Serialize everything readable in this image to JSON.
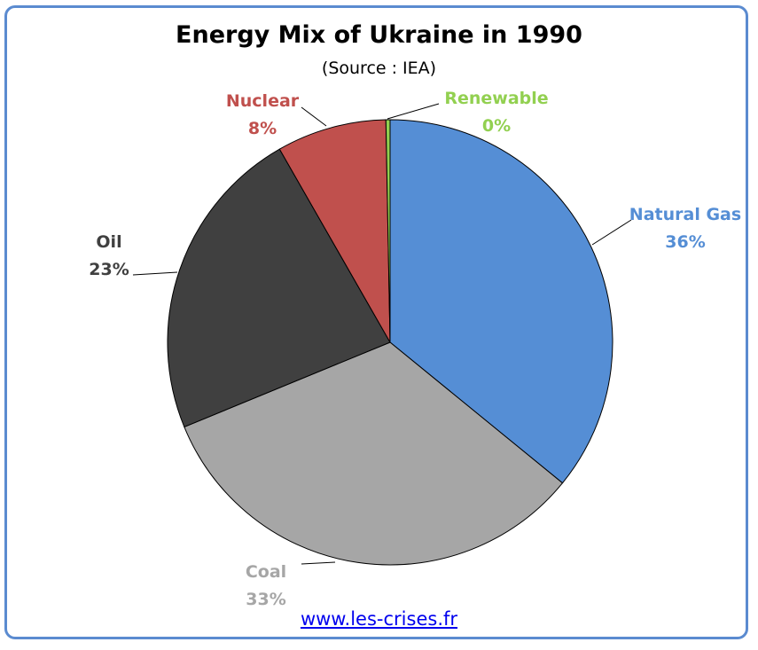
{
  "title": "Energy Mix of Ukraine in 1990",
  "subtitle": "(Source : IEA)",
  "footer_link": "www.les-crises.fr",
  "chart_data": {
    "type": "pie",
    "title": "Energy Mix of Ukraine in 1990",
    "subtitle": "(Source : IEA)",
    "slices": [
      {
        "name": "Natural Gas",
        "value": 36,
        "label": "36%",
        "color": "#558ed5",
        "label_color": "#558ed5"
      },
      {
        "name": "Coal",
        "value": 33,
        "label": "33%",
        "color": "#a6a6a6",
        "label_color": "#a6a6a6"
      },
      {
        "name": "Oil",
        "value": 23,
        "label": "23%",
        "color": "#404040",
        "label_color": "#404040"
      },
      {
        "name": "Nuclear",
        "value": 8,
        "label": "8%",
        "color": "#c0504d",
        "label_color": "#c0504d"
      },
      {
        "name": "Renewable",
        "value": 0.3,
        "label": "0%",
        "color": "#92d050",
        "label_color": "#92d050"
      }
    ],
    "start_angle": "12 o'clock",
    "direction": "clockwise",
    "legend": "none"
  }
}
